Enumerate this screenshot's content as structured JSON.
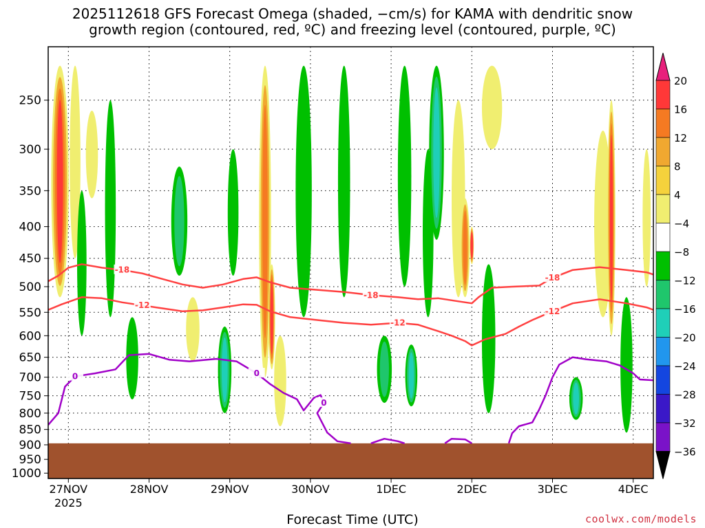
{
  "chart_data": {
    "type": "heatmap",
    "title_line1": "2025112618 GFS Forecast Omega (shaded, −cm/s) for KAMA with dendritic snow",
    "title_line2": "growth region (contoured, red, ºC) and freezing level (contoured, purple, ºC)",
    "xlabel": "Forecast Time (UTC)",
    "ylabel": "",
    "credit": "coolwx.com/models",
    "x_ticks": [
      {
        "label": "27NOV",
        "sub": "2025",
        "t": 6
      },
      {
        "label": "28NOV",
        "sub": "",
        "t": 30
      },
      {
        "label": "29NOV",
        "sub": "",
        "t": 54
      },
      {
        "label": "30NOV",
        "sub": "",
        "t": 78
      },
      {
        "label": "1DEC",
        "sub": "",
        "t": 102
      },
      {
        "label": "2DEC",
        "sub": "",
        "t": 126
      },
      {
        "label": "3DEC",
        "sub": "",
        "t": 150
      },
      {
        "label": "4DEC",
        "sub": "",
        "t": 174
      }
    ],
    "x_range_hours": [
      0,
      180
    ],
    "y_ticks": [
      250,
      300,
      350,
      400,
      450,
      500,
      550,
      600,
      650,
      700,
      750,
      800,
      850,
      900,
      950,
      1000
    ],
    "y_unit": "hPa",
    "y_range_hPa": [
      205,
      1020
    ],
    "grid": true,
    "colorbar": {
      "labels": [
        "20",
        "16",
        "12",
        "8",
        "4",
        "−4",
        "−8",
        "−12",
        "−16",
        "−20",
        "−24",
        "−28",
        "−32",
        "−36"
      ],
      "colors": [
        "#e8207c",
        "#ff3838",
        "#f57a22",
        "#f0a830",
        "#f5d23c",
        "#f0ee70",
        "#ffffff",
        "#00c000",
        "#1fc66c",
        "#1fcfb8",
        "#2196ee",
        "#1446e0",
        "#3a18c8",
        "#7a12c8",
        "#a000c8",
        "#a8a8a8",
        "#000000"
      ]
    },
    "terrain_color": "#a0522d",
    "terrain_top_hPa": 895,
    "contours": [
      {
        "label": "-18",
        "color": "#ff4040",
        "points": [
          [
            0,
            490
          ],
          [
            3,
            480
          ],
          [
            6,
            466
          ],
          [
            10,
            460
          ],
          [
            16,
            466
          ],
          [
            22,
            470
          ],
          [
            28,
            476
          ],
          [
            34,
            486
          ],
          [
            40,
            496
          ],
          [
            46,
            502
          ],
          [
            52,
            496
          ],
          [
            58,
            486
          ],
          [
            62,
            483
          ],
          [
            66,
            492
          ],
          [
            72,
            502
          ],
          [
            80,
            506
          ],
          [
            88,
            510
          ],
          [
            96,
            516
          ],
          [
            104,
            520
          ],
          [
            110,
            524
          ],
          [
            116,
            522
          ],
          [
            122,
            528
          ],
          [
            126,
            532
          ],
          [
            128,
            520
          ],
          [
            132,
            502
          ],
          [
            138,
            500
          ],
          [
            146,
            498
          ],
          [
            150,
            484
          ],
          [
            156,
            470
          ],
          [
            164,
            465
          ],
          [
            172,
            470
          ],
          [
            178,
            474
          ],
          [
            180,
            478
          ]
        ]
      },
      {
        "label": "-12",
        "color": "#ff4040",
        "points": [
          [
            0,
            545
          ],
          [
            4,
            534
          ],
          [
            10,
            520
          ],
          [
            16,
            522
          ],
          [
            22,
            530
          ],
          [
            28,
            536
          ],
          [
            34,
            542
          ],
          [
            40,
            548
          ],
          [
            46,
            546
          ],
          [
            52,
            540
          ],
          [
            58,
            534
          ],
          [
            62,
            535
          ],
          [
            66,
            548
          ],
          [
            72,
            560
          ],
          [
            80,
            566
          ],
          [
            88,
            572
          ],
          [
            96,
            576
          ],
          [
            104,
            572
          ],
          [
            110,
            576
          ],
          [
            116,
            590
          ],
          [
            120,
            600
          ],
          [
            124,
            612
          ],
          [
            126,
            622
          ],
          [
            130,
            608
          ],
          [
            136,
            596
          ],
          [
            140,
            580
          ],
          [
            144,
            566
          ],
          [
            150,
            548
          ],
          [
            156,
            532
          ],
          [
            164,
            524
          ],
          [
            172,
            532
          ],
          [
            178,
            540
          ],
          [
            180,
            545
          ]
        ]
      },
      {
        "label": "0",
        "color": "#a000c8",
        "points": [
          [
            0,
            836
          ],
          [
            3,
            800
          ],
          [
            5,
            725
          ],
          [
            8,
            698
          ],
          [
            14,
            690
          ],
          [
            20,
            680
          ],
          [
            24,
            645
          ],
          [
            30,
            642
          ],
          [
            36,
            656
          ],
          [
            42,
            660
          ],
          [
            50,
            654
          ],
          [
            56,
            660
          ],
          [
            62,
            690
          ],
          [
            66,
            718
          ],
          [
            70,
            742
          ],
          [
            74,
            760
          ],
          [
            76,
            792
          ],
          [
            79,
            756
          ],
          [
            81,
            748
          ],
          [
            82,
            770
          ],
          [
            80,
            800
          ],
          [
            83,
            860
          ],
          [
            86,
            888
          ],
          [
            90,
            895
          ]
        ]
      },
      {
        "label": "",
        "color": "#a000c8",
        "points": [
          [
            96,
            895
          ],
          [
            100,
            880
          ],
          [
            104,
            888
          ],
          [
            106,
            895
          ]
        ]
      },
      {
        "label": "",
        "color": "#a000c8",
        "points": [
          [
            118,
            895
          ],
          [
            120,
            880
          ],
          [
            124,
            882
          ],
          [
            126,
            895
          ]
        ]
      },
      {
        "label": "",
        "color": "#a000c8",
        "points": [
          [
            137,
            895
          ],
          [
            138,
            862
          ],
          [
            140,
            840
          ],
          [
            144,
            828
          ],
          [
            146,
            790
          ],
          [
            148,
            748
          ],
          [
            150,
            700
          ],
          [
            152,
            668
          ],
          [
            156,
            650
          ],
          [
            160,
            655
          ],
          [
            166,
            660
          ],
          [
            170,
            670
          ],
          [
            174,
            690
          ],
          [
            176,
            706
          ],
          [
            180,
            708
          ]
        ]
      }
    ],
    "omega_features": [
      {
        "t": 3.5,
        "p1": 220,
        "p2": 520,
        "w": 2.6,
        "v": 16
      },
      {
        "t": 8,
        "p1": 220,
        "p2": 450,
        "w": 1.6,
        "v": 6
      },
      {
        "t": 13,
        "p1": 260,
        "p2": 360,
        "w": 1.8,
        "v": 6
      },
      {
        "t": 10,
        "p1": 350,
        "p2": 600,
        "w": 1.4,
        "v": -6
      },
      {
        "t": 18.5,
        "p1": 250,
        "p2": 560,
        "w": 1.6,
        "v": -7
      },
      {
        "t": 25,
        "p1": 560,
        "p2": 760,
        "w": 1.8,
        "v": -6
      },
      {
        "t": 39,
        "p1": 320,
        "p2": 480,
        "w": 2.4,
        "v": -10
      },
      {
        "t": 43,
        "p1": 520,
        "p2": 660,
        "w": 2.0,
        "v": 6
      },
      {
        "t": 52.5,
        "p1": 580,
        "p2": 800,
        "w": 2.0,
        "v": -12
      },
      {
        "t": 55,
        "p1": 300,
        "p2": 480,
        "w": 1.6,
        "v": -7
      },
      {
        "t": 64.5,
        "p1": 220,
        "p2": 700,
        "w": 1.8,
        "v": 12
      },
      {
        "t": 66.5,
        "p1": 460,
        "p2": 680,
        "w": 1.0,
        "v": 16
      },
      {
        "t": 69,
        "p1": 600,
        "p2": 840,
        "w": 1.8,
        "v": 6
      },
      {
        "t": 76,
        "p1": 220,
        "p2": 560,
        "w": 2.4,
        "v": -7
      },
      {
        "t": 88,
        "p1": 220,
        "p2": 520,
        "w": 1.8,
        "v": -6
      },
      {
        "t": 100,
        "p1": 600,
        "p2": 770,
        "w": 2.2,
        "v": -10
      },
      {
        "t": 106,
        "p1": 220,
        "p2": 500,
        "w": 2.0,
        "v": -7
      },
      {
        "t": 108,
        "p1": 620,
        "p2": 780,
        "w": 1.8,
        "v": -13
      },
      {
        "t": 113,
        "p1": 300,
        "p2": 560,
        "w": 1.6,
        "v": -6
      },
      {
        "t": 115.5,
        "p1": 220,
        "p2": 420,
        "w": 2.2,
        "v": -12
      },
      {
        "t": 122,
        "p1": 250,
        "p2": 520,
        "w": 2.0,
        "v": 6
      },
      {
        "t": 124,
        "p1": 360,
        "p2": 520,
        "w": 1.4,
        "v": 12
      },
      {
        "t": 126,
        "p1": 400,
        "p2": 460,
        "w": 0.6,
        "v": 16
      },
      {
        "t": 132,
        "p1": 220,
        "p2": 300,
        "w": 3.0,
        "v": 5
      },
      {
        "t": 131,
        "p1": 460,
        "p2": 800,
        "w": 2.0,
        "v": -6
      },
      {
        "t": 157,
        "p1": 700,
        "p2": 820,
        "w": 2.0,
        "v": -12
      },
      {
        "t": 165,
        "p1": 280,
        "p2": 560,
        "w": 2.6,
        "v": 6
      },
      {
        "t": 167.5,
        "p1": 250,
        "p2": 600,
        "w": 1.2,
        "v": 16
      },
      {
        "t": 172,
        "p1": 520,
        "p2": 860,
        "w": 1.8,
        "v": -7
      },
      {
        "t": 178,
        "p1": 300,
        "p2": 500,
        "w": 1.2,
        "v": 5
      }
    ]
  }
}
